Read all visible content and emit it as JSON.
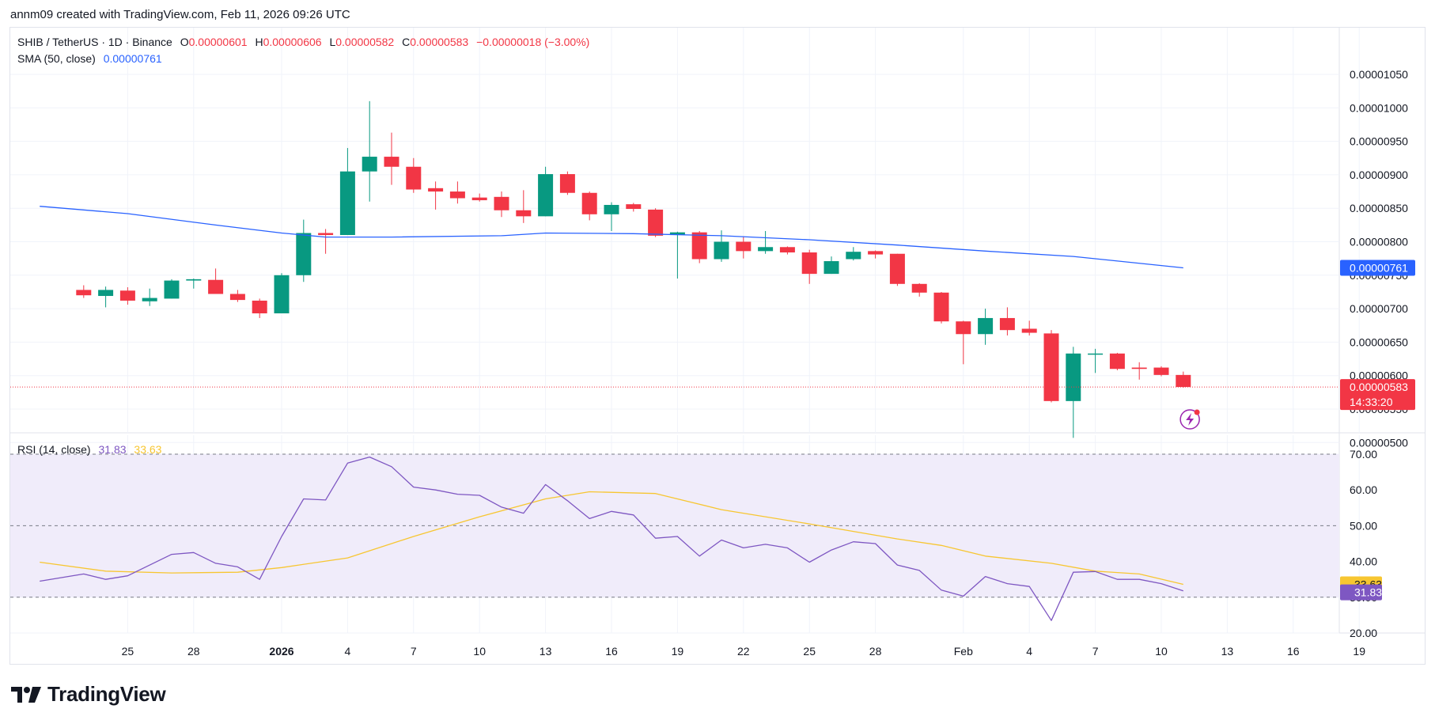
{
  "header": {
    "caption": "annm09 created with TradingView.com, Feb 11, 2026 09:26 UTC"
  },
  "legend": {
    "symbol": "SHIB / TetherUS · 1D · Binance",
    "open_label": "O",
    "open": "0.00000601",
    "high_label": "H",
    "high": "0.00000606",
    "low_label": "L",
    "low": "0.00000582",
    "close_label": "C",
    "close": "0.00000583",
    "change": "−0.00000018 (−3.00%)",
    "sma_label": "SMA (50, close)",
    "sma_value": "0.00000761",
    "rsi_label": "RSI (14, close)",
    "rsi_value": "31.83",
    "rsi_ma_value": "33.63"
  },
  "brand": {
    "name": "TradingView"
  },
  "colors": {
    "up": "#089981",
    "down": "#f23645",
    "sma": "#2962ff",
    "rsi": "#7e57c2",
    "rsi_ma": "#f7c631",
    "rsi_band": "#f0ecfa",
    "price_line": "#f23645",
    "grid": "#f0f3fa"
  },
  "icons": {
    "lightning": "lightning-icon",
    "logo": "tradingview-logo-icon"
  },
  "chart_data": {
    "type": "candlestick",
    "price_axis": {
      "ticks": [
        "0.00001050",
        "0.00001000",
        "0.00000950",
        "0.00000900",
        "0.00000850",
        "0.00000800",
        "0.00000750",
        "0.00000700",
        "0.00000650",
        "0.00000600",
        "0.00000550",
        "0.00000500"
      ],
      "tick_values": [
        10.5,
        10,
        9.5,
        9,
        8.5,
        8,
        7.5,
        7,
        6.5,
        6,
        5.5,
        5
      ],
      "unit_multiplier": "e-6"
    },
    "price_badges": {
      "sma": "0.00000761",
      "last": "0.00000583",
      "countdown": "14:33:20"
    },
    "x_axis": {
      "labels": [
        "25",
        "28",
        "2026",
        "4",
        "7",
        "10",
        "13",
        "16",
        "19",
        "22",
        "25",
        "28",
        "Feb",
        "4",
        "7",
        "10",
        "13",
        "16",
        "19"
      ],
      "label_days": [
        -7,
        -4,
        0,
        3,
        6,
        9,
        12,
        15,
        18,
        21,
        24,
        27,
        31,
        34,
        37,
        40,
        43,
        46,
        49
      ]
    },
    "candles_note": "day index 0 = Jan 1 2026; prices in units of 1e-6",
    "candles": [
      {
        "d": -9,
        "o": 7.28,
        "h": 7.35,
        "l": 7.16,
        "c": 7.2
      },
      {
        "d": -8,
        "o": 7.19,
        "h": 7.33,
        "l": 7.02,
        "c": 7.28
      },
      {
        "d": -7,
        "o": 7.27,
        "h": 7.32,
        "l": 7.06,
        "c": 7.12
      },
      {
        "d": -6,
        "o": 7.11,
        "h": 7.3,
        "l": 7.04,
        "c": 7.16
      },
      {
        "d": -5,
        "o": 7.15,
        "h": 7.44,
        "l": 7.15,
        "c": 7.42
      },
      {
        "d": -4,
        "o": 7.42,
        "h": 7.45,
        "l": 7.3,
        "c": 7.44
      },
      {
        "d": -3,
        "o": 7.43,
        "h": 7.6,
        "l": 7.24,
        "c": 7.22
      },
      {
        "d": -2,
        "o": 7.22,
        "h": 7.28,
        "l": 7.1,
        "c": 7.13
      },
      {
        "d": -1,
        "o": 7.12,
        "h": 7.15,
        "l": 6.86,
        "c": 6.93
      },
      {
        "d": 0,
        "o": 6.93,
        "h": 7.53,
        "l": 6.93,
        "c": 7.5
      },
      {
        "d": 1,
        "o": 7.5,
        "h": 8.33,
        "l": 7.4,
        "c": 8.13
      },
      {
        "d": 2,
        "o": 8.13,
        "h": 8.19,
        "l": 7.82,
        "c": 8.1
      },
      {
        "d": 3,
        "o": 8.1,
        "h": 9.4,
        "l": 8.1,
        "c": 9.05
      },
      {
        "d": 4,
        "o": 9.05,
        "h": 10.1,
        "l": 8.6,
        "c": 9.27
      },
      {
        "d": 5,
        "o": 9.27,
        "h": 9.63,
        "l": 8.85,
        "c": 9.12
      },
      {
        "d": 6,
        "o": 9.12,
        "h": 9.25,
        "l": 8.73,
        "c": 8.78
      },
      {
        "d": 7,
        "o": 8.8,
        "h": 8.9,
        "l": 8.48,
        "c": 8.75
      },
      {
        "d": 8,
        "o": 8.75,
        "h": 8.9,
        "l": 8.57,
        "c": 8.65
      },
      {
        "d": 9,
        "o": 8.66,
        "h": 8.72,
        "l": 8.6,
        "c": 8.62
      },
      {
        "d": 10,
        "o": 8.67,
        "h": 8.75,
        "l": 8.37,
        "c": 8.47
      },
      {
        "d": 11,
        "o": 8.47,
        "h": 8.77,
        "l": 8.28,
        "c": 8.38
      },
      {
        "d": 12,
        "o": 8.38,
        "h": 9.12,
        "l": 8.38,
        "c": 9.01
      },
      {
        "d": 13,
        "o": 9.01,
        "h": 9.05,
        "l": 8.7,
        "c": 8.73
      },
      {
        "d": 14,
        "o": 8.73,
        "h": 8.75,
        "l": 8.32,
        "c": 8.41
      },
      {
        "d": 15,
        "o": 8.41,
        "h": 8.59,
        "l": 8.16,
        "c": 8.55
      },
      {
        "d": 16,
        "o": 8.56,
        "h": 8.58,
        "l": 8.45,
        "c": 8.49
      },
      {
        "d": 17,
        "o": 8.48,
        "h": 8.5,
        "l": 8.07,
        "c": 8.09
      },
      {
        "d": 18,
        "o": 8.1,
        "h": 8.15,
        "l": 7.45,
        "c": 8.14
      },
      {
        "d": 19,
        "o": 8.14,
        "h": 8.16,
        "l": 7.68,
        "c": 7.74
      },
      {
        "d": 20,
        "o": 7.74,
        "h": 8.17,
        "l": 7.7,
        "c": 8.0
      },
      {
        "d": 21,
        "o": 8.0,
        "h": 8.08,
        "l": 7.75,
        "c": 7.86
      },
      {
        "d": 22,
        "o": 7.86,
        "h": 8.16,
        "l": 7.82,
        "c": 7.92
      },
      {
        "d": 23,
        "o": 7.92,
        "h": 7.93,
        "l": 7.81,
        "c": 7.84
      },
      {
        "d": 24,
        "o": 7.84,
        "h": 7.88,
        "l": 7.37,
        "c": 7.52
      },
      {
        "d": 25,
        "o": 7.52,
        "h": 7.78,
        "l": 7.52,
        "c": 7.71
      },
      {
        "d": 26,
        "o": 7.74,
        "h": 7.92,
        "l": 7.72,
        "c": 7.85
      },
      {
        "d": 27,
        "o": 7.86,
        "h": 7.87,
        "l": 7.75,
        "c": 7.81
      },
      {
        "d": 28,
        "o": 7.82,
        "h": 7.82,
        "l": 7.34,
        "c": 7.37
      },
      {
        "d": 29,
        "o": 7.37,
        "h": 7.38,
        "l": 7.18,
        "c": 7.24
      },
      {
        "d": 30,
        "o": 7.24,
        "h": 7.25,
        "l": 6.78,
        "c": 6.81
      },
      {
        "d": 31,
        "o": 6.81,
        "h": 6.82,
        "l": 6.17,
        "c": 6.62
      },
      {
        "d": 32,
        "o": 6.62,
        "h": 7.0,
        "l": 6.46,
        "c": 6.86
      },
      {
        "d": 33,
        "o": 6.86,
        "h": 7.02,
        "l": 6.6,
        "c": 6.68
      },
      {
        "d": 34,
        "o": 6.7,
        "h": 6.82,
        "l": 6.6,
        "c": 6.64
      },
      {
        "d": 35,
        "o": 6.63,
        "h": 6.68,
        "l": 5.6,
        "c": 5.62
      },
      {
        "d": 36,
        "o": 5.62,
        "h": 6.43,
        "l": 5.07,
        "c": 6.33
      },
      {
        "d": 37,
        "o": 6.33,
        "h": 6.4,
        "l": 6.04,
        "c": 6.33
      },
      {
        "d": 38,
        "o": 6.33,
        "h": 6.34,
        "l": 6.08,
        "c": 6.1
      },
      {
        "d": 39,
        "o": 6.12,
        "h": 6.2,
        "l": 5.94,
        "c": 6.1
      },
      {
        "d": 40,
        "o": 6.12,
        "h": 6.14,
        "l": 5.99,
        "c": 6.01
      },
      {
        "d": 41,
        "o": 6.01,
        "h": 6.06,
        "l": 5.82,
        "c": 5.83
      }
    ],
    "sma_series": {
      "name": "SMA (50, close)",
      "points": [
        [
          -11,
          8.53
        ],
        [
          -7,
          8.42
        ],
        [
          -3,
          8.25
        ],
        [
          0,
          8.13
        ],
        [
          2,
          8.07
        ],
        [
          5,
          8.07
        ],
        [
          10,
          8.09
        ],
        [
          12,
          8.13
        ],
        [
          16,
          8.12
        ],
        [
          20,
          8.09
        ],
        [
          24,
          8.03
        ],
        [
          28,
          7.95
        ],
        [
          32,
          7.86
        ],
        [
          36,
          7.78
        ],
        [
          41,
          7.61
        ]
      ]
    },
    "rsi_axis": {
      "ticks": [
        "70.00",
        "60.00",
        "50.00",
        "40.00",
        "30.00",
        "20.00"
      ],
      "values": [
        70,
        60,
        50,
        40,
        30,
        20
      ],
      "band": [
        30,
        70
      ],
      "mid": 50
    },
    "rsi_series": {
      "name": "RSI (14, close)",
      "points": [
        [
          -11,
          34.5
        ],
        [
          -9,
          36.5
        ],
        [
          -8,
          35
        ],
        [
          -7,
          36
        ],
        [
          -5,
          42
        ],
        [
          -4,
          42.5
        ],
        [
          -3,
          39.5
        ],
        [
          -2,
          38.5
        ],
        [
          -1,
          35
        ],
        [
          0,
          47
        ],
        [
          1,
          57.5
        ],
        [
          2,
          57.2
        ],
        [
          3,
          67.5
        ],
        [
          4,
          69.2
        ],
        [
          5,
          66.5
        ],
        [
          6,
          60.8
        ],
        [
          7,
          60
        ],
        [
          8,
          58.8
        ],
        [
          9,
          58.5
        ],
        [
          10,
          55.2
        ],
        [
          11,
          53.5
        ],
        [
          12,
          61.5
        ],
        [
          13,
          57
        ],
        [
          14,
          52
        ],
        [
          15,
          54
        ],
        [
          16,
          53
        ],
        [
          17,
          46.5
        ],
        [
          18,
          47
        ],
        [
          19,
          41.5
        ],
        [
          20,
          46
        ],
        [
          21,
          43.8
        ],
        [
          22,
          44.8
        ],
        [
          23,
          43.8
        ],
        [
          24,
          39.8
        ],
        [
          25,
          43.2
        ],
        [
          26,
          45.5
        ],
        [
          27,
          45
        ],
        [
          28,
          39
        ],
        [
          29,
          37.5
        ],
        [
          30,
          32
        ],
        [
          31,
          30.3
        ],
        [
          32,
          35.8
        ],
        [
          33,
          33.8
        ],
        [
          34,
          33
        ],
        [
          35,
          23.5
        ],
        [
          36,
          37
        ],
        [
          37,
          37.2
        ],
        [
          38,
          35
        ],
        [
          39,
          35
        ],
        [
          40,
          33.8
        ],
        [
          41,
          31.8
        ]
      ]
    },
    "rsi_ma_series": {
      "name": "RSI-based MA",
      "points": [
        [
          -11,
          39.8
        ],
        [
          -8,
          37.3
        ],
        [
          -5,
          36.8
        ],
        [
          -2,
          37
        ],
        [
          0,
          38.3
        ],
        [
          3,
          41
        ],
        [
          6,
          47
        ],
        [
          9,
          52.5
        ],
        [
          12,
          57.5
        ],
        [
          14,
          59.5
        ],
        [
          17,
          59
        ],
        [
          20,
          54.5
        ],
        [
          24,
          50.5
        ],
        [
          28,
          46.3
        ],
        [
          30,
          44.5
        ],
        [
          32,
          41.5
        ],
        [
          35,
          39.5
        ],
        [
          37,
          37.3
        ],
        [
          39,
          36.5
        ],
        [
          41,
          33.6
        ]
      ]
    }
  }
}
